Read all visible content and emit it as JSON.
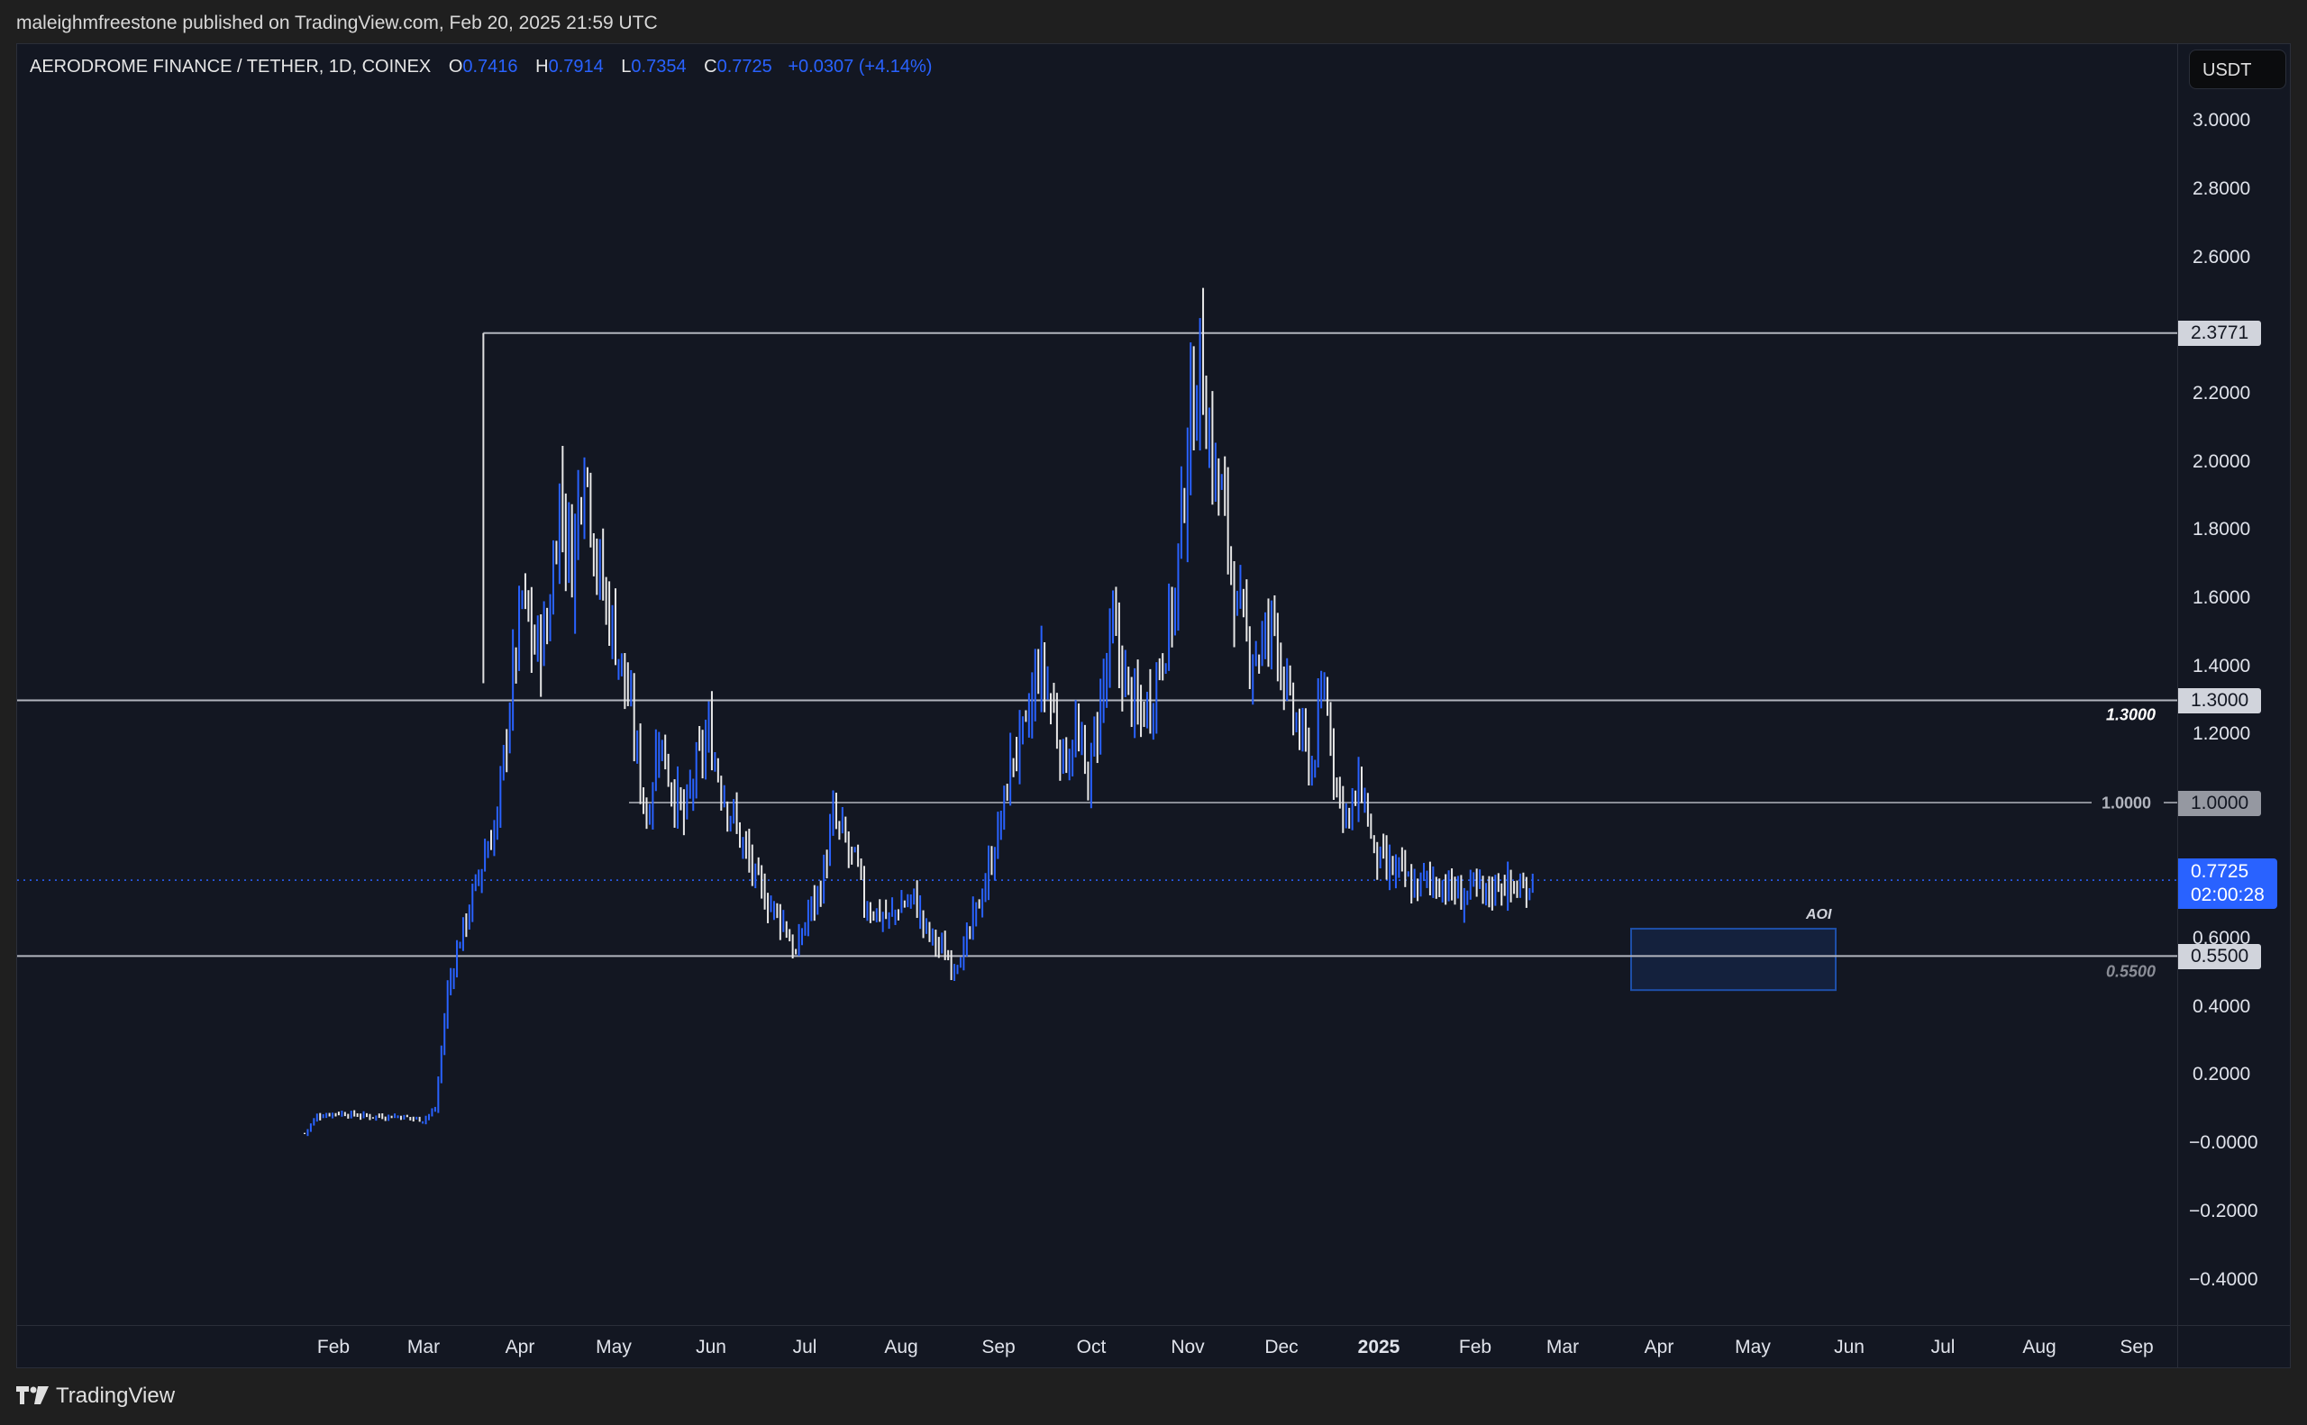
{
  "header": {
    "published_by": "maleighmfreestone published on TradingView.com, Feb 20, 2025 21:59 UTC"
  },
  "legend": {
    "symbol": "AERODROME FINANCE / TETHER, 1D, COINEX",
    "open_label": "O",
    "open": "0.7416",
    "high_label": "H",
    "high": "0.7914",
    "low_label": "L",
    "low": "0.7354",
    "close_label": "C",
    "close": "0.7725",
    "change": "+0.0307 (+4.14%)"
  },
  "price_axis": {
    "currency": "USDT",
    "ticks": [
      "3.0000",
      "2.8000",
      "2.6000",
      "2.2000",
      "2.0000",
      "1.8000",
      "1.6000",
      "1.4000",
      "1.2000",
      "0.6000",
      "0.4000",
      "0.2000",
      "−0.0000",
      "−0.2000",
      "−0.4000"
    ],
    "labels": {
      "top_level": "2.3771",
      "resistance": "1.3000",
      "mid_level": "1.0000",
      "current_price": "0.7725",
      "countdown": "02:00:28",
      "support": "0.5500"
    }
  },
  "annotations": {
    "line_1_3": "1.3000",
    "line_1_0": "1.0000",
    "line_0_55": "0.5500",
    "aoi": "AOI"
  },
  "time_axis": {
    "labels": [
      "Feb",
      "Mar",
      "Apr",
      "May",
      "Jun",
      "Jul",
      "Aug",
      "Sep",
      "Oct",
      "Nov",
      "Dec",
      "2025",
      "Feb",
      "Mar",
      "Apr",
      "May",
      "Jun",
      "Jul",
      "Aug",
      "Sep"
    ]
  },
  "footer": {
    "brand": "TradingView"
  },
  "colors": {
    "background": "#131722",
    "up_candle": "#2962ff",
    "down_candle": "#e8e8e8",
    "level_line": "#b2b5be",
    "current_price": "#2962ff",
    "aoi_fill": "#14213d",
    "aoi_border": "#1e4fa8"
  },
  "chart_data": {
    "type": "candlestick",
    "title": "AERODROME FINANCE / TETHER, 1D, COINEX",
    "xlabel": "",
    "ylabel": "USDT",
    "ylim": [
      -0.45,
      3.1
    ],
    "x_ticks": [
      "Feb",
      "Mar",
      "Apr",
      "May",
      "Jun",
      "Jul",
      "Aug",
      "Sep",
      "Oct",
      "Nov",
      "Dec",
      "2025",
      "Feb",
      "Mar",
      "Apr",
      "May",
      "Jun",
      "Jul",
      "Aug",
      "Sep"
    ],
    "y_ticks": [
      3.0,
      2.8,
      2.6,
      2.4,
      2.2,
      2.0,
      1.8,
      1.6,
      1.4,
      1.2,
      1.0,
      0.8,
      0.6,
      0.4,
      0.2,
      0.0,
      -0.2,
      -0.4
    ],
    "grid": false,
    "last_ohlc": {
      "open": 0.7416,
      "high": 0.7914,
      "low": 0.7354,
      "close": 0.7725,
      "change": 0.0307,
      "change_pct": 4.14
    },
    "horizontal_levels": [
      {
        "price": 2.3771,
        "label": "2.3771",
        "from": "Apr 2024 high"
      },
      {
        "price": 1.3,
        "label": "1.3000"
      },
      {
        "price": 1.0,
        "label": "1.0000"
      },
      {
        "price": 0.55,
        "label": "0.5500"
      }
    ],
    "zones": [
      {
        "name": "AOI",
        "price_top": 0.63,
        "price_bottom": 0.45,
        "time_start": "Mar 2025",
        "time_end": "May 2025"
      }
    ],
    "approx_close_path": {
      "days_from_start": [
        0,
        4,
        10,
        20,
        30,
        38,
        42,
        46,
        50,
        54,
        58,
        62,
        66,
        70,
        74,
        78,
        82,
        86,
        90,
        94,
        98,
        102,
        106,
        110,
        114,
        118,
        122,
        126,
        130,
        134,
        138,
        142,
        146,
        150,
        154,
        158,
        162,
        166,
        170,
        174,
        178,
        180,
        184,
        188,
        192,
        196,
        200,
        204,
        208,
        212,
        216,
        220,
        224,
        228,
        232,
        236,
        240,
        244,
        248,
        252,
        256,
        260,
        264,
        268,
        272,
        276,
        280,
        284,
        288,
        292,
        296,
        300,
        304,
        308,
        312,
        316,
        320,
        324,
        328,
        332,
        336,
        340,
        344,
        348,
        352,
        356,
        360,
        364,
        368,
        372,
        376,
        380,
        384,
        388,
        392,
        395
      ],
      "close": [
        0.03,
        0.08,
        0.09,
        0.08,
        0.08,
        0.07,
        0.1,
        0.45,
        0.6,
        0.72,
        0.85,
        0.95,
        1.3,
        1.6,
        1.45,
        1.5,
        1.9,
        1.7,
        2.05,
        1.7,
        1.55,
        1.4,
        1.2,
        0.95,
        1.2,
        1.05,
        0.95,
        1.1,
        1.2,
        1.05,
        0.95,
        0.85,
        0.75,
        0.7,
        0.65,
        0.55,
        0.68,
        0.75,
        0.95,
        0.88,
        0.8,
        0.7,
        0.68,
        0.66,
        0.7,
        0.72,
        0.62,
        0.58,
        0.53,
        0.56,
        0.68,
        0.8,
        0.95,
        1.15,
        1.2,
        1.4,
        1.3,
        1.12,
        1.2,
        1.06,
        1.3,
        1.5,
        1.35,
        1.25,
        1.3,
        1.45,
        1.6,
        2.05,
        2.3,
        2.0,
        1.85,
        1.55,
        1.45,
        1.45,
        1.55,
        1.3,
        1.2,
        1.1,
        1.35,
        1.05,
        0.95,
        1.05,
        0.85,
        0.8,
        0.8,
        0.75,
        0.77,
        0.77,
        0.75,
        0.72,
        0.75,
        0.73,
        0.77,
        0.75,
        0.74,
        0.7725
      ]
    }
  }
}
